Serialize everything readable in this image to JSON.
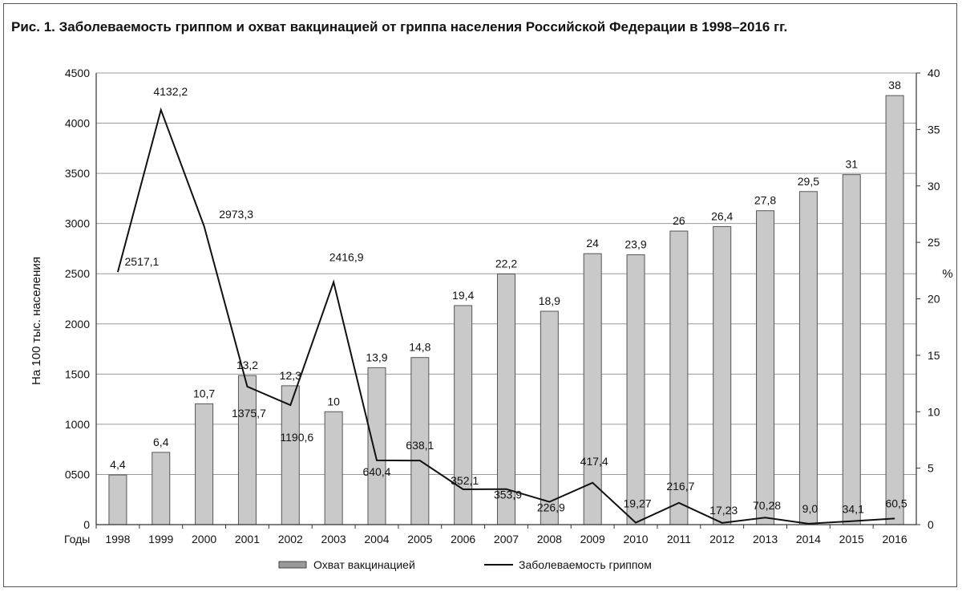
{
  "title": "Рис. 1. Заболеваемость гриппом и охват вакцинацией от гриппа населения Российской Федерации в 1998–2016 гг.",
  "colors": {
    "bar_fill": "#c9c9c9",
    "bar_stroke": "#555555",
    "line": "#111111",
    "grid": "#9a9a9a"
  },
  "chart_data": {
    "type": "bar",
    "xlabel": "Годы",
    "ylabel_left": "На 100 тыс. населения",
    "ylabel_right": "%",
    "ylim_left": [
      0,
      4500
    ],
    "ylim_right": [
      0,
      40
    ],
    "yticks_left": [
      "0",
      "0500",
      "1000",
      "1500",
      "2000",
      "2500",
      "3000",
      "3500",
      "4000",
      "4500"
    ],
    "yticks_left_values": [
      0,
      500,
      1000,
      1500,
      2000,
      2500,
      3000,
      3500,
      4000,
      4500
    ],
    "yticks_right": [
      "0",
      "5",
      "10",
      "15",
      "20",
      "25",
      "30",
      "35",
      "40"
    ],
    "yticks_right_values": [
      0,
      5,
      10,
      15,
      20,
      25,
      30,
      35,
      40
    ],
    "categories": [
      "1998",
      "1999",
      "2000",
      "2001",
      "2002",
      "2003",
      "2004",
      "2005",
      "2006",
      "2007",
      "2008",
      "2009",
      "2010",
      "2011",
      "2012",
      "2013",
      "2014",
      "2015",
      "2016"
    ],
    "grid": "horizontal",
    "legend_position": "bottom",
    "series": [
      {
        "name": "Охват вакцинацией",
        "type": "bar",
        "axis": "right",
        "values": [
          4.4,
          6.4,
          10.7,
          13.2,
          12.3,
          10,
          13.9,
          14.8,
          19.4,
          22.2,
          18.9,
          24,
          23.9,
          26,
          26.4,
          27.8,
          29.5,
          31,
          38
        ],
        "labels": [
          "4,4",
          "6,4",
          "10,7",
          "13,2",
          "12,3",
          "10",
          "13,9",
          "14,8",
          "19,4",
          "22,2",
          "18,9",
          "24",
          "23,9",
          "26",
          "26,4",
          "27,8",
          "29,5",
          "31",
          "38"
        ]
      },
      {
        "name": "Заболеваемость гриппом",
        "type": "line",
        "axis": "left",
        "values": [
          2517.1,
          4132.2,
          2973.3,
          1375.7,
          1190.6,
          2416.9,
          640.4,
          638.1,
          352.1,
          353.9,
          226.9,
          417.4,
          19.27,
          216.7,
          17.23,
          70.28,
          9.0,
          34.1,
          60.5
        ],
        "labels": [
          "2517,1",
          "4132,2",
          "2973,3",
          "1375,7",
          "1190,6",
          "2416,9",
          "640,4",
          "638,1",
          "352,1",
          "353,9",
          "226,9",
          "417,4",
          "19,27",
          "216,7",
          "17,23",
          "70,28",
          "9,0",
          "34,1",
          "60,5"
        ]
      }
    ]
  }
}
